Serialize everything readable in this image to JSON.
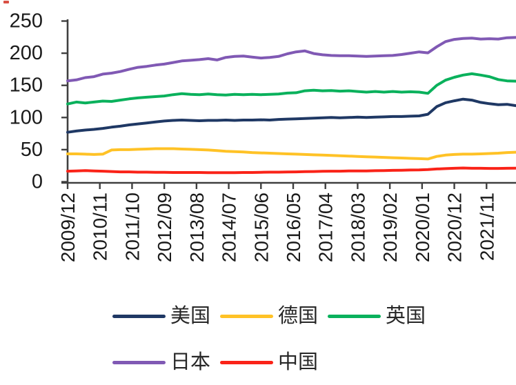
{
  "chart_data": {
    "type": "line",
    "title": "",
    "xlabel": "",
    "ylabel": "",
    "ylim": [
      0,
      250
    ],
    "yticks": [
      0,
      50,
      100,
      150,
      200,
      250
    ],
    "grid": false,
    "legend_position": "bottom",
    "x_unit": "monthly (YYYY/MM)",
    "x_start": "2009/12",
    "x_end": "2022/09",
    "x_tick_labels": [
      "2009/12",
      "2010/11",
      "2011/10",
      "2012/09",
      "2013/08",
      "2014/07",
      "2015/06",
      "2016/05",
      "2017/04",
      "2018/03",
      "2019/02",
      "2020/01",
      "2020/12",
      "2021/11"
    ],
    "x_tick_months": [
      0,
      11,
      22,
      33,
      44,
      55,
      66,
      77,
      88,
      99,
      110,
      121,
      132,
      143
    ],
    "x_months": [
      0,
      3,
      6,
      9,
      12,
      15,
      18,
      21,
      24,
      27,
      30,
      33,
      36,
      39,
      42,
      45,
      48,
      51,
      54,
      57,
      60,
      63,
      66,
      69,
      72,
      75,
      78,
      81,
      84,
      87,
      90,
      93,
      96,
      99,
      102,
      105,
      108,
      111,
      114,
      117,
      120,
      123,
      126,
      129,
      132,
      135,
      138,
      141,
      144,
      147,
      150,
      153
    ],
    "legend_rows": [
      [
        "us",
        "germany",
        "uk"
      ],
      [
        "japan",
        "china"
      ]
    ],
    "series": [
      {
        "key": "us",
        "name": "美国",
        "color": "#1F3864",
        "values": [
          77,
          79,
          80.5,
          81.5,
          83,
          85,
          86.5,
          88.5,
          90,
          91.5,
          93,
          94.5,
          95.5,
          96,
          95.5,
          95,
          95.5,
          95.5,
          96,
          95.5,
          96,
          96,
          96.5,
          96,
          97,
          97.5,
          98,
          98.5,
          99,
          99.5,
          100,
          99.5,
          100,
          100.5,
          100,
          100.5,
          101,
          101.5,
          101.5,
          102,
          102.5,
          105,
          117,
          123,
          126,
          128.5,
          127,
          123.5,
          121.5,
          120,
          120.5,
          118.5
        ]
      },
      {
        "key": "germany",
        "name": "德国",
        "color": "#FFC226",
        "values": [
          43.5,
          43.5,
          43,
          42.5,
          43,
          49.5,
          50,
          50,
          50.5,
          51,
          51.5,
          51.5,
          51.5,
          51,
          50.5,
          50,
          49.5,
          48.5,
          47.5,
          47,
          46.5,
          45.5,
          45,
          44.5,
          44,
          43.5,
          43,
          42.5,
          42,
          41.5,
          41,
          40.5,
          40,
          39.5,
          39,
          38.5,
          38,
          37.5,
          37,
          36.5,
          36,
          35.5,
          39.5,
          41.5,
          42.5,
          43,
          43,
          43.5,
          44,
          44.5,
          45.5,
          46
        ]
      },
      {
        "key": "uk",
        "name": "英国",
        "color": "#0AB15C",
        "values": [
          121,
          124,
          122.5,
          124,
          125.5,
          125,
          127,
          129,
          130.5,
          131.5,
          132.5,
          133.5,
          135.5,
          137,
          136,
          135.5,
          136.5,
          135.5,
          135,
          136,
          135.5,
          136,
          135.5,
          136,
          136.5,
          138,
          138.5,
          141.5,
          142.5,
          141.5,
          142,
          141,
          141.5,
          140.5,
          139.5,
          140.5,
          139.5,
          140.5,
          139.5,
          140,
          139.5,
          137.5,
          150,
          158,
          162.5,
          166,
          168,
          166,
          163.5,
          159,
          157,
          156.5
        ]
      },
      {
        "key": "japan",
        "name": "日本",
        "color": "#8059B4",
        "values": [
          157,
          158.5,
          162,
          163.5,
          167.5,
          169,
          171.5,
          175,
          178,
          179.5,
          181.5,
          183,
          185.5,
          188,
          189,
          190,
          191.5,
          189.5,
          193.5,
          195,
          195.5,
          194,
          192.5,
          193.5,
          195,
          199,
          202,
          203.5,
          199.5,
          197.5,
          196.5,
          196,
          196,
          195.5,
          195,
          195.5,
          196,
          196.5,
          198,
          200,
          202,
          200.5,
          210,
          218,
          221.5,
          223,
          223.5,
          222,
          222.5,
          222,
          224,
          224.5
        ]
      },
      {
        "key": "china",
        "name": "中国",
        "color": "#FA2318",
        "values": [
          16.5,
          17,
          17.5,
          17,
          16.5,
          16,
          15.5,
          15.5,
          15,
          15,
          14.8,
          14.8,
          14.5,
          14.5,
          14.5,
          14.5,
          14.3,
          14.3,
          14.3,
          14.3,
          14.5,
          14.5,
          14.8,
          15,
          15,
          15.3,
          15.5,
          15.8,
          16,
          16.3,
          16.5,
          16.5,
          16.8,
          17,
          17,
          17.3,
          17.5,
          17.8,
          18,
          18.3,
          18.5,
          19,
          20,
          20.5,
          21,
          21.5,
          21,
          21,
          20.8,
          20.8,
          21,
          21.2
        ]
      }
    ],
    "style": {
      "axis_color": "#3F3F3F",
      "label_color": "#1A1A1A",
      "line_width": 4
    }
  }
}
